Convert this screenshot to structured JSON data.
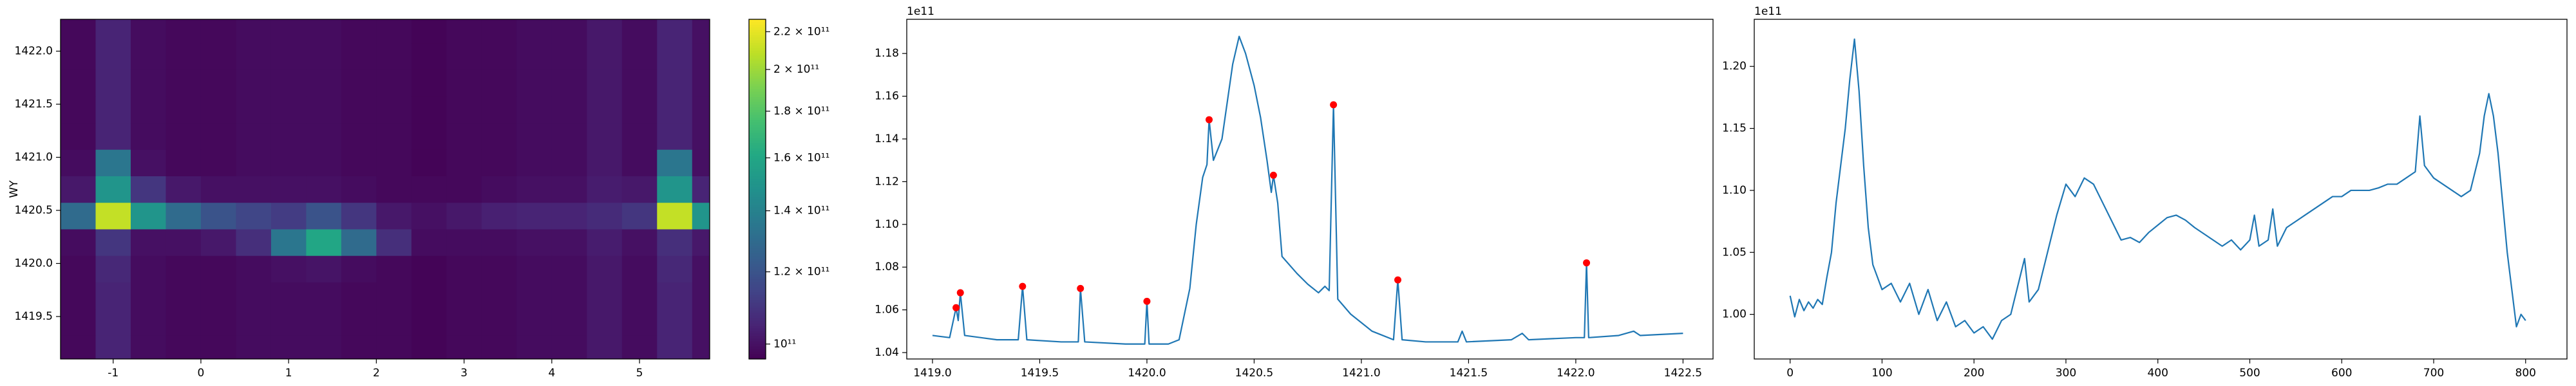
{
  "chart_data": [
    {
      "type": "heatmap",
      "ylabel": "WY",
      "colormap": "viridis",
      "x": [
        -1.4,
        -1.0,
        -0.6,
        -0.2,
        0.2,
        0.6,
        1.0,
        1.4,
        1.8,
        2.2,
        2.6,
        3.0,
        3.4,
        3.8,
        4.2,
        4.6,
        5.0,
        5.4,
        5.8
      ],
      "y": [
        1419.2,
        1419.45,
        1419.7,
        1419.95,
        1420.2,
        1420.45,
        1420.7,
        1420.95,
        1421.2,
        1421.45,
        1421.7,
        1421.95,
        1422.2
      ],
      "z": [
        [
          98000000000.0,
          105000000000.0,
          99000000000.0,
          98000000000.0,
          98000000000.0,
          99000000000.0,
          99000000000.0,
          99000000000.0,
          98000000000.0,
          98000000000.0,
          97000000000.0,
          98000000000.0,
          98000000000.0,
          99000000000.0,
          99000000000.0,
          102000000000.0,
          99000000000.0,
          105000000000.0,
          100000000000.0
        ],
        [
          98000000000.0,
          105000000000.0,
          99000000000.0,
          98000000000.0,
          98000000000.0,
          99000000000.0,
          99000000000.0,
          99000000000.0,
          98000000000.0,
          98000000000.0,
          97000000000.0,
          98000000000.0,
          98000000000.0,
          99000000000.0,
          99000000000.0,
          102000000000.0,
          99000000000.0,
          105000000000.0,
          100000000000.0
        ],
        [
          98000000000.0,
          105000000000.0,
          99000000000.0,
          98000000000.0,
          98000000000.0,
          99000000000.0,
          99000000000.0,
          99000000000.0,
          98000000000.0,
          98000000000.0,
          97000000000.0,
          98000000000.0,
          98000000000.0,
          99000000000.0,
          99000000000.0,
          102000000000.0,
          99000000000.0,
          105000000000.0,
          100000000000.0
        ],
        [
          98000000000.0,
          106000000000.0,
          99000000000.0,
          98000000000.0,
          98000000000.0,
          99000000000.0,
          100000000000.0,
          101000000000.0,
          99000000000.0,
          98000000000.0,
          97000000000.0,
          98000000000.0,
          98000000000.0,
          99000000000.0,
          99000000000.0,
          102000000000.0,
          99000000000.0,
          106000000000.0,
          100000000000.0
        ],
        [
          99000000000.0,
          110000000000.0,
          100000000000.0,
          100000000000.0,
          102000000000.0,
          108000000000.0,
          135000000000.0,
          160000000000.0,
          130000000000.0,
          108000000000.0,
          99000000000.0,
          99000000000.0,
          99000000000.0,
          100000000000.0,
          100000000000.0,
          103000000000.0,
          100000000000.0,
          108000000000.0,
          102000000000.0
        ],
        [
          130000000000.0,
          210000000000.0,
          150000000000.0,
          130000000000.0,
          120000000000.0,
          115000000000.0,
          112000000000.0,
          120000000000.0,
          110000000000.0,
          102000000000.0,
          100000000000.0,
          102000000000.0,
          104000000000.0,
          105000000000.0,
          105000000000.0,
          107000000000.0,
          110000000000.0,
          210000000000.0,
          150000000000.0
        ],
        [
          102000000000.0,
          150000000000.0,
          110000000000.0,
          102000000000.0,
          100000000000.0,
          100000000000.0,
          100000000000.0,
          100000000000.0,
          99000000000.0,
          98000000000.0,
          98000000000.0,
          98000000000.0,
          99000000000.0,
          100000000000.0,
          100000000000.0,
          103000000000.0,
          102000000000.0,
          150000000000.0,
          105000000000.0
        ],
        [
          99000000000.0,
          135000000000.0,
          100000000000.0,
          98000000000.0,
          98000000000.0,
          99000000000.0,
          99000000000.0,
          99000000000.0,
          98000000000.0,
          98000000000.0,
          97000000000.0,
          98000000000.0,
          98000000000.0,
          99000000000.0,
          99000000000.0,
          102000000000.0,
          99000000000.0,
          135000000000.0,
          100000000000.0
        ],
        [
          98000000000.0,
          105000000000.0,
          99000000000.0,
          98000000000.0,
          98000000000.0,
          99000000000.0,
          99000000000.0,
          99000000000.0,
          98000000000.0,
          98000000000.0,
          97000000000.0,
          98000000000.0,
          98000000000.0,
          99000000000.0,
          99000000000.0,
          102000000000.0,
          99000000000.0,
          105000000000.0,
          100000000000.0
        ],
        [
          98000000000.0,
          105000000000.0,
          99000000000.0,
          98000000000.0,
          98000000000.0,
          99000000000.0,
          99000000000.0,
          99000000000.0,
          98000000000.0,
          98000000000.0,
          97000000000.0,
          98000000000.0,
          98000000000.0,
          99000000000.0,
          99000000000.0,
          102000000000.0,
          99000000000.0,
          105000000000.0,
          100000000000.0
        ],
        [
          98000000000.0,
          105000000000.0,
          99000000000.0,
          98000000000.0,
          98000000000.0,
          99000000000.0,
          99000000000.0,
          99000000000.0,
          98000000000.0,
          98000000000.0,
          97000000000.0,
          98000000000.0,
          98000000000.0,
          99000000000.0,
          99000000000.0,
          102000000000.0,
          99000000000.0,
          105000000000.0,
          100000000000.0
        ],
        [
          98000000000.0,
          105000000000.0,
          99000000000.0,
          98000000000.0,
          98000000000.0,
          99000000000.0,
          99000000000.0,
          99000000000.0,
          98000000000.0,
          98000000000.0,
          97000000000.0,
          98000000000.0,
          98000000000.0,
          99000000000.0,
          99000000000.0,
          102000000000.0,
          99000000000.0,
          105000000000.0,
          100000000000.0
        ],
        [
          98000000000.0,
          105000000000.0,
          99000000000.0,
          98000000000.0,
          98000000000.0,
          99000000000.0,
          99000000000.0,
          99000000000.0,
          98000000000.0,
          98000000000.0,
          97000000000.0,
          98000000000.0,
          98000000000.0,
          99000000000.0,
          99000000000.0,
          102000000000.0,
          99000000000.0,
          105000000000.0,
          100000000000.0
        ]
      ],
      "xlim": [
        -1.6,
        5.8
      ],
      "ylim": [
        1419.1,
        1422.3
      ],
      "xticks": [
        -1,
        0,
        1,
        2,
        3,
        4,
        5
      ],
      "yticks": [
        1419.5,
        {
          "value": 1420.0,
          "label": "1420.0"
        },
        1420.5,
        {
          "value": 1421.0,
          "label": "1421.0"
        },
        1421.5,
        {
          "value": 1422.0,
          "label": "1422.0"
        }
      ],
      "colorbar": {
        "clim": [
          96300000000.0,
          227000000000.0
        ],
        "log": true,
        "ticks": [
          {
            "value": 100000000000.0,
            "label": "10¹¹"
          },
          {
            "value": 120000000000.0,
            "label": "1.2 × 10¹¹"
          },
          {
            "value": 140000000000.0,
            "label": "1.4 × 10¹¹"
          },
          {
            "value": 160000000000.0,
            "label": "1.6 × 10¹¹"
          },
          {
            "value": 180000000000.0,
            "label": "1.8 × 10¹¹"
          },
          {
            "value": 200000000000.0,
            "label": "2 × 10¹¹"
          },
          {
            "value": 220000000000.0,
            "label": "2.2 × 10¹¹"
          }
        ]
      }
    },
    {
      "type": "line",
      "offset_text": "1e11",
      "xlim": [
        1418.88,
        1422.64
      ],
      "ylim": [
        1.037,
        1.196
      ],
      "xticks": [
        {
          "value": 1419.0,
          "label": "1419.0"
        },
        1419.5,
        {
          "value": 1420.0,
          "label": "1420.0"
        },
        1420.5,
        {
          "value": 1421.0,
          "label": "1421.0"
        },
        1421.5,
        {
          "value": 1422.0,
          "label": "1422.0"
        },
        1422.5
      ],
      "yticks": [
        1.04,
        1.06,
        1.08,
        {
          "value": 1.1,
          "label": "1.10"
        },
        1.12,
        1.14,
        1.16,
        1.18
      ],
      "series": [
        {
          "mode": "line",
          "color": "#1f77b4",
          "x": [
            1419.0,
            1419.08,
            1419.11,
            1419.12,
            1419.13,
            1419.15,
            1419.3,
            1419.4,
            1419.42,
            1419.44,
            1419.6,
            1419.68,
            1419.69,
            1419.71,
            1419.9,
            1419.99,
            1420.0,
            1420.01,
            1420.1,
            1420.15,
            1420.2,
            1420.23,
            1420.26,
            1420.28,
            1420.29,
            1420.31,
            1420.35,
            1420.4,
            1420.43,
            1420.46,
            1420.5,
            1420.53,
            1420.56,
            1420.58,
            1420.59,
            1420.61,
            1420.63,
            1420.7,
            1420.75,
            1420.8,
            1420.83,
            1420.85,
            1420.87,
            1420.89,
            1420.95,
            1421.05,
            1421.15,
            1421.17,
            1421.19,
            1421.3,
            1421.45,
            1421.47,
            1421.49,
            1421.7,
            1421.75,
            1421.78,
            1422.0,
            1422.04,
            1422.05,
            1422.06,
            1422.2,
            1422.27,
            1422.3,
            1422.5
          ],
          "values": [
            1.048,
            1.047,
            1.061,
            1.055,
            1.068,
            1.048,
            1.046,
            1.046,
            1.071,
            1.046,
            1.045,
            1.045,
            1.07,
            1.045,
            1.044,
            1.044,
            1.064,
            1.044,
            1.044,
            1.046,
            1.07,
            1.1,
            1.122,
            1.128,
            1.149,
            1.13,
            1.14,
            1.175,
            1.188,
            1.18,
            1.165,
            1.15,
            1.13,
            1.115,
            1.123,
            1.11,
            1.085,
            1.077,
            1.072,
            1.068,
            1.071,
            1.069,
            1.156,
            1.065,
            1.058,
            1.05,
            1.046,
            1.074,
            1.046,
            1.045,
            1.045,
            1.05,
            1.045,
            1.046,
            1.049,
            1.046,
            1.047,
            1.047,
            1.082,
            1.047,
            1.048,
            1.05,
            1.048,
            1.049
          ]
        },
        {
          "mode": "markers",
          "color": "#ff0000",
          "x": [
            1419.11,
            1419.13,
            1419.42,
            1419.69,
            1420.0,
            1420.29,
            1420.59,
            1420.87,
            1421.17,
            1422.05
          ],
          "values": [
            1.061,
            1.068,
            1.071,
            1.07,
            1.064,
            1.149,
            1.123,
            1.156,
            1.074,
            1.082
          ]
        }
      ]
    },
    {
      "type": "line",
      "offset_text": "1e11",
      "xlim": [
        -39,
        845
      ],
      "ylim": [
        0.964,
        1.238
      ],
      "xticks": [
        0,
        100,
        200,
        300,
        400,
        500,
        600,
        700,
        800
      ],
      "yticks": [
        {
          "value": 1.0,
          "label": "1.00"
        },
        1.05,
        {
          "value": 1.1,
          "label": "1.10"
        },
        1.15,
        {
          "value": 1.2,
          "label": "1.20"
        }
      ],
      "series": [
        {
          "mode": "line",
          "color": "#1f77b4",
          "x": [
            0,
            5,
            10,
            15,
            20,
            25,
            30,
            35,
            40,
            45,
            50,
            55,
            60,
            65,
            70,
            75,
            80,
            85,
            90,
            100,
            110,
            120,
            130,
            140,
            150,
            160,
            170,
            180,
            190,
            200,
            210,
            220,
            230,
            240,
            250,
            255,
            260,
            270,
            280,
            290,
            300,
            310,
            320,
            330,
            340,
            350,
            360,
            370,
            380,
            390,
            400,
            410,
            420,
            430,
            440,
            450,
            460,
            470,
            480,
            490,
            500,
            505,
            510,
            520,
            525,
            530,
            540,
            550,
            560,
            570,
            580,
            590,
            600,
            610,
            620,
            630,
            640,
            650,
            660,
            670,
            680,
            685,
            690,
            700,
            710,
            720,
            730,
            740,
            750,
            755,
            760,
            765,
            770,
            775,
            780,
            785,
            790,
            795,
            800
          ],
          "values": [
            1.015,
            0.998,
            1.012,
            1.003,
            1.01,
            1.005,
            1.012,
            1.008,
            1.03,
            1.05,
            1.09,
            1.12,
            1.15,
            1.19,
            1.222,
            1.18,
            1.12,
            1.07,
            1.04,
            1.02,
            1.025,
            1.01,
            1.025,
            1.0,
            1.02,
            0.995,
            1.01,
            0.99,
            0.995,
            0.985,
            0.99,
            0.98,
            0.995,
            1.0,
            1.03,
            1.045,
            1.01,
            1.02,
            1.05,
            1.08,
            1.105,
            1.095,
            1.11,
            1.105,
            1.09,
            1.075,
            1.06,
            1.062,
            1.058,
            1.066,
            1.072,
            1.078,
            1.08,
            1.076,
            1.07,
            1.065,
            1.06,
            1.055,
            1.06,
            1.052,
            1.06,
            1.08,
            1.055,
            1.06,
            1.085,
            1.055,
            1.07,
            1.075,
            1.08,
            1.085,
            1.09,
            1.095,
            1.095,
            1.1,
            1.1,
            1.1,
            1.102,
            1.105,
            1.105,
            1.11,
            1.115,
            1.16,
            1.12,
            1.11,
            1.105,
            1.1,
            1.095,
            1.1,
            1.13,
            1.16,
            1.178,
            1.16,
            1.13,
            1.09,
            1.05,
            1.02,
            0.99,
            1.0,
            0.995
          ]
        }
      ]
    }
  ]
}
